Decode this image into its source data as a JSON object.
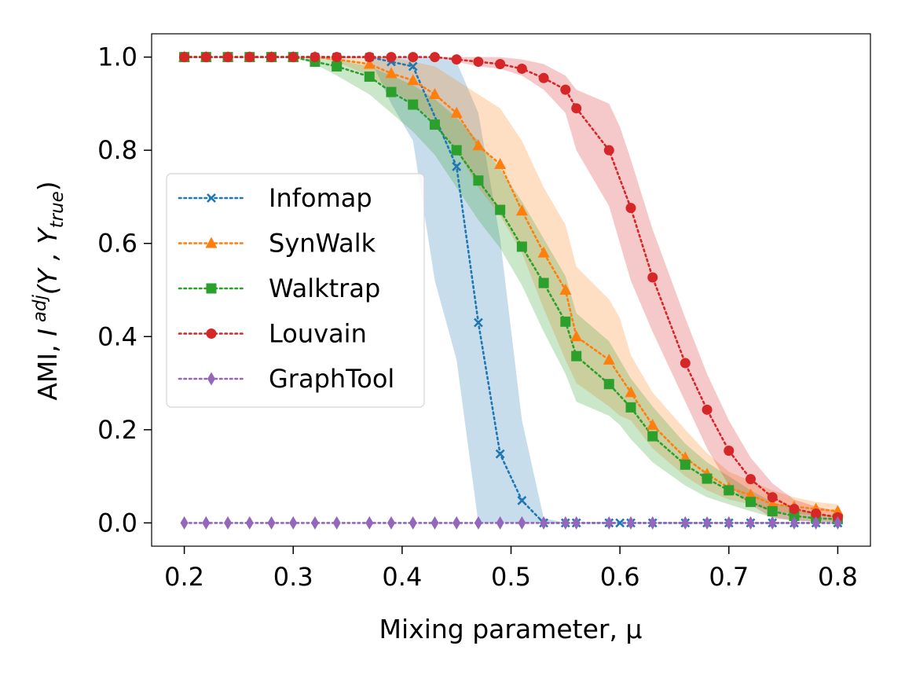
{
  "chart_data": {
    "type": "line",
    "xlabel": "Mixing parameter, μ",
    "ylabel_main": "AMI, ",
    "ylabel_I": "I",
    "ylabel_sup": "adj",
    "ylabel_paren_open": "(Y , Y",
    "ylabel_sub": "true",
    "ylabel_paren_close": ")",
    "xlim": [
      0.17,
      0.83
    ],
    "ylim": [
      -0.05,
      1.05
    ],
    "xticks": [
      0.2,
      0.3,
      0.4,
      0.5,
      0.6,
      0.7,
      0.8
    ],
    "xtick_labels": [
      "0.2",
      "0.3",
      "0.4",
      "0.5",
      "0.6",
      "0.7",
      "0.8"
    ],
    "yticks": [
      0.0,
      0.2,
      0.4,
      0.6,
      0.8,
      1.0
    ],
    "ytick_labels": [
      "0.0",
      "0.2",
      "0.4",
      "0.6",
      "0.8",
      "1.0"
    ],
    "grid": false,
    "legend_position": "center-left",
    "x": [
      0.2,
      0.22,
      0.24,
      0.26,
      0.28,
      0.3,
      0.32,
      0.34,
      0.37,
      0.39,
      0.41,
      0.43,
      0.45,
      0.47,
      0.49,
      0.51,
      0.53,
      0.55,
      0.56,
      0.59,
      0.6,
      0.61,
      0.63,
      0.66,
      0.68,
      0.7,
      0.72,
      0.74,
      0.76,
      0.78,
      0.8
    ],
    "series": [
      {
        "name": "Infomap",
        "color": "#1f77b4",
        "marker": "x",
        "values": [
          1.0,
          1.0,
          1.0,
          1.0,
          1.0,
          1.0,
          1.0,
          1.0,
          1.0,
          0.99,
          0.98,
          null,
          0.765,
          0.43,
          0.148,
          0.048,
          0.0,
          0.0,
          0.0,
          0.0,
          0.0,
          0.0,
          0.0,
          0.0,
          0.0,
          0.0,
          0.0,
          0.0,
          0.0,
          0.0,
          0.0
        ],
        "lower": [
          1.0,
          1.0,
          1.0,
          1.0,
          1.0,
          1.0,
          1.0,
          1.0,
          1.0,
          0.9,
          0.82,
          0.52,
          0.35,
          0.0,
          0.0,
          0.0,
          0.0,
          0.0,
          0.0,
          0.0,
          0.0,
          0.0,
          0.0,
          0.0,
          0.0,
          0.0,
          0.0,
          0.0,
          0.0,
          0.0,
          0.0
        ],
        "upper": [
          1.0,
          1.0,
          1.0,
          1.0,
          1.0,
          1.0,
          1.0,
          1.0,
          1.0,
          1.0,
          1.0,
          1.0,
          0.99,
          0.88,
          0.61,
          0.22,
          0.01,
          0.0,
          0.0,
          0.0,
          0.0,
          0.0,
          0.0,
          0.0,
          0.0,
          0.0,
          0.0,
          0.0,
          0.0,
          0.0,
          0.0
        ]
      },
      {
        "name": "SynWalk",
        "color": "#ff7f0e",
        "marker": "triangle",
        "values": [
          1.0,
          1.0,
          1.0,
          1.0,
          1.0,
          1.0,
          1.0,
          0.995,
          0.985,
          0.965,
          0.95,
          0.92,
          0.88,
          0.81,
          0.77,
          0.67,
          0.58,
          0.5,
          0.4,
          0.35,
          null,
          0.28,
          0.21,
          0.14,
          0.105,
          0.075,
          0.06,
          0.04,
          0.035,
          0.03,
          0.025
        ],
        "lower": [
          1.0,
          1.0,
          1.0,
          1.0,
          1.0,
          1.0,
          1.0,
          0.99,
          0.96,
          0.93,
          0.9,
          0.86,
          0.8,
          0.72,
          0.66,
          0.58,
          0.46,
          0.35,
          0.3,
          0.25,
          0.23,
          0.22,
          0.16,
          0.1,
          0.07,
          0.05,
          0.04,
          0.025,
          0.02,
          0.015,
          0.012
        ],
        "upper": [
          1.0,
          1.0,
          1.0,
          1.0,
          1.0,
          1.0,
          1.0,
          1.0,
          1.0,
          1.0,
          0.99,
          0.98,
          0.95,
          0.92,
          0.89,
          0.82,
          0.72,
          0.64,
          0.55,
          0.48,
          0.44,
          0.36,
          0.28,
          0.2,
          0.15,
          0.11,
          0.09,
          0.07,
          0.055,
          0.045,
          0.04
        ]
      },
      {
        "name": "Walktrap",
        "color": "#2ca02c",
        "marker": "square",
        "values": [
          1.0,
          1.0,
          1.0,
          1.0,
          1.0,
          1.0,
          0.99,
          0.98,
          0.958,
          0.925,
          0.898,
          0.855,
          0.8,
          0.735,
          0.672,
          0.593,
          0.515,
          0.432,
          0.358,
          0.298,
          null,
          0.248,
          0.186,
          0.125,
          0.095,
          0.07,
          0.045,
          0.025,
          0.015,
          0.01,
          0.008
        ],
        "lower": [
          1.0,
          1.0,
          1.0,
          1.0,
          1.0,
          1.0,
          0.985,
          0.96,
          0.92,
          0.88,
          0.84,
          0.79,
          0.72,
          0.65,
          0.59,
          0.51,
          0.41,
          0.32,
          0.26,
          0.23,
          0.21,
          0.18,
          0.13,
          0.08,
          0.055,
          0.04,
          0.025,
          0.012,
          0.005,
          0.003,
          0.002
        ],
        "upper": [
          1.0,
          1.0,
          1.0,
          1.0,
          1.0,
          1.0,
          1.0,
          0.995,
          0.98,
          0.96,
          0.94,
          0.91,
          0.87,
          0.82,
          0.76,
          0.69,
          0.61,
          0.53,
          0.45,
          0.39,
          0.35,
          0.31,
          0.25,
          0.17,
          0.13,
          0.1,
          0.07,
          0.045,
          0.03,
          0.02,
          0.015
        ]
      },
      {
        "name": "Louvain",
        "color": "#d62728",
        "marker": "circle",
        "values": [
          1.0,
          1.0,
          1.0,
          1.0,
          1.0,
          1.0,
          1.0,
          1.0,
          1.0,
          1.0,
          1.0,
          1.0,
          0.995,
          0.99,
          0.985,
          0.975,
          0.955,
          0.93,
          0.89,
          0.8,
          null,
          0.676,
          0.527,
          0.343,
          0.243,
          0.155,
          0.094,
          0.055,
          0.03,
          0.02,
          0.012
        ],
        "lower": [
          1.0,
          1.0,
          1.0,
          1.0,
          1.0,
          1.0,
          1.0,
          1.0,
          1.0,
          1.0,
          1.0,
          1.0,
          0.99,
          0.98,
          0.975,
          0.96,
          0.93,
          0.88,
          0.8,
          0.68,
          0.6,
          0.52,
          0.41,
          0.26,
          0.16,
          0.08,
          0.04,
          0.01,
          0.005,
          0.003,
          0.002
        ],
        "upper": [
          1.0,
          1.0,
          1.0,
          1.0,
          1.0,
          1.0,
          1.0,
          1.0,
          1.0,
          1.0,
          1.0,
          1.0,
          1.0,
          1.0,
          1.0,
          0.995,
          0.985,
          0.96,
          0.93,
          0.9,
          0.85,
          0.78,
          0.63,
          0.44,
          0.32,
          0.22,
          0.14,
          0.085,
          0.05,
          0.035,
          0.025
        ]
      },
      {
        "name": "GraphTool",
        "color": "#9467bd",
        "marker": "diamond",
        "values": [
          0.0,
          0.0,
          0.0,
          0.0,
          0.0,
          0.0,
          0.0,
          0.0,
          0.0,
          0.0,
          0.0,
          0.0,
          0.0,
          0.0,
          0.0,
          0.0,
          0.0,
          0.0,
          0.0,
          0.0,
          null,
          0.0,
          0.0,
          0.0,
          0.0,
          0.0,
          0.0,
          0.0,
          0.0,
          0.0,
          0.0
        ],
        "lower": null,
        "upper": null
      }
    ]
  }
}
